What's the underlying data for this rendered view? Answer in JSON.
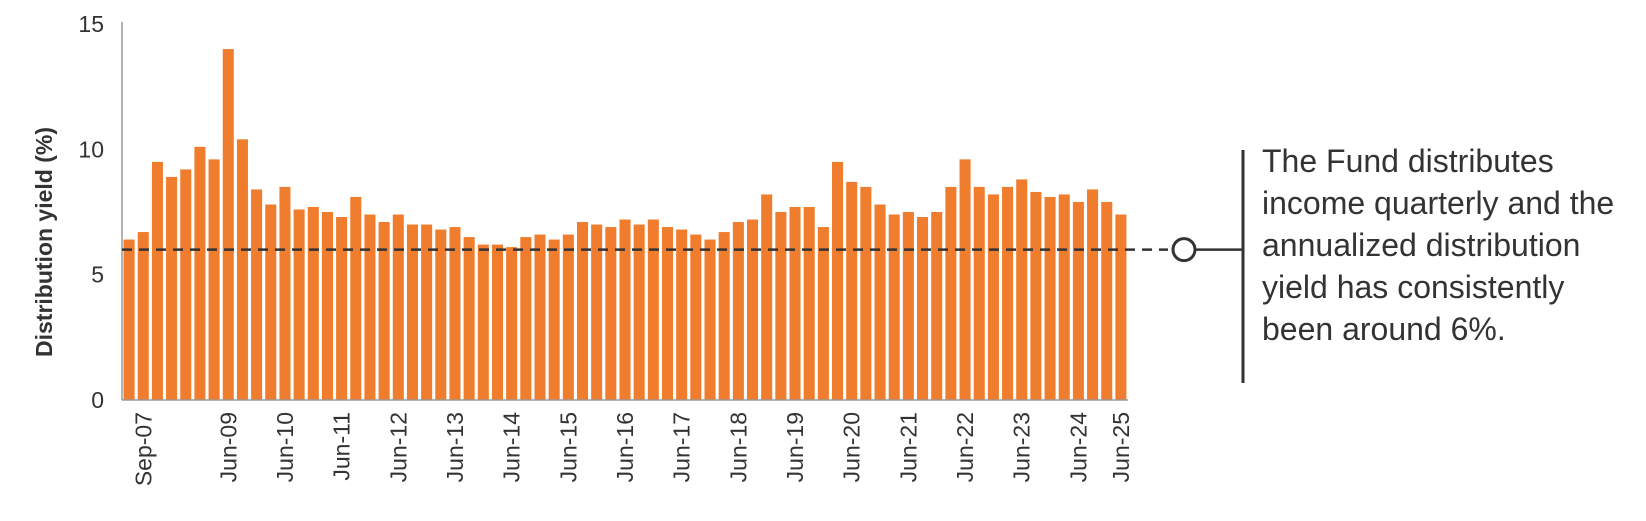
{
  "chart_data": {
    "type": "bar",
    "ylabel": "Distribution yield (%)",
    "ylim": [
      0,
      15
    ],
    "yticks": [
      "0",
      "5",
      "10",
      "15"
    ],
    "xticks": [
      "Sep-07",
      "Jun-09",
      "Jun-10",
      "Jun-11",
      "Jun-12",
      "Jun-13",
      "Jun-14",
      "Jun-15",
      "Jun-16",
      "Jun-17",
      "Jun-18",
      "Jun-19",
      "Jun-20",
      "Jun-21",
      "Jun-22",
      "Jun-23",
      "Jun-24",
      "Jun-25"
    ],
    "values": [
      6.4,
      6.7,
      9.5,
      8.9,
      9.2,
      10.1,
      9.6,
      14.0,
      10.4,
      8.4,
      7.8,
      8.5,
      7.6,
      7.7,
      7.5,
      7.3,
      8.1,
      7.4,
      7.1,
      7.4,
      7.0,
      7.0,
      6.8,
      6.9,
      6.5,
      6.2,
      6.2,
      6.1,
      6.5,
      6.6,
      6.4,
      6.6,
      7.1,
      7.0,
      6.9,
      7.2,
      7.0,
      7.2,
      6.9,
      6.8,
      6.6,
      6.4,
      6.7,
      7.1,
      7.2,
      8.2,
      7.5,
      7.7,
      7.7,
      6.9,
      9.5,
      8.7,
      8.5,
      7.8,
      7.4,
      7.5,
      7.3,
      7.5,
      8.5,
      9.6,
      8.5,
      8.2,
      8.5,
      8.8,
      8.3,
      8.1,
      8.2,
      7.9,
      8.4,
      7.9,
      7.4
    ],
    "reference_line": 6.0,
    "bar_color": "#ef7d2d",
    "grid": false
  },
  "annotation": {
    "text": "The Fund distributes income quarterly and the annualized distribution yield has consistently been around 6%."
  }
}
